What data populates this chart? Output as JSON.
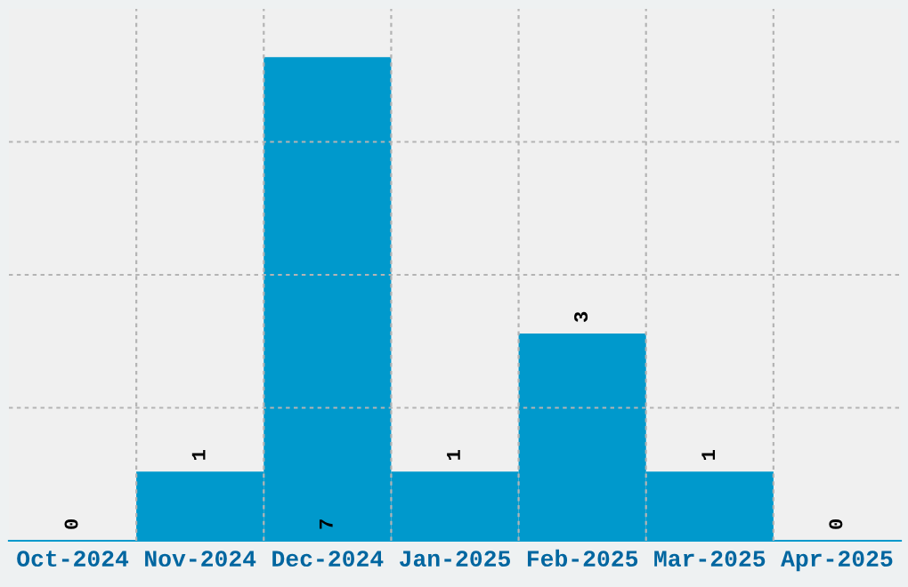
{
  "chart_data": {
    "type": "bar",
    "categories": [
      "Oct-2024",
      "Nov-2024",
      "Dec-2024",
      "Jan-2025",
      "Feb-2025",
      "Mar-2025",
      "Apr-2025"
    ],
    "values": [
      0,
      1,
      7,
      1,
      3,
      1,
      0
    ],
    "color": "#0099cc",
    "ylim": [
      0,
      7.7
    ],
    "yticks": [
      {
        "value": 1.925,
        "label": null
      },
      {
        "value": 3.85,
        "label": null
      },
      {
        "value": 5.775,
        "label": null
      }
    ],
    "tick_labels": "x",
    "data_labels": true,
    "grid": true
  }
}
